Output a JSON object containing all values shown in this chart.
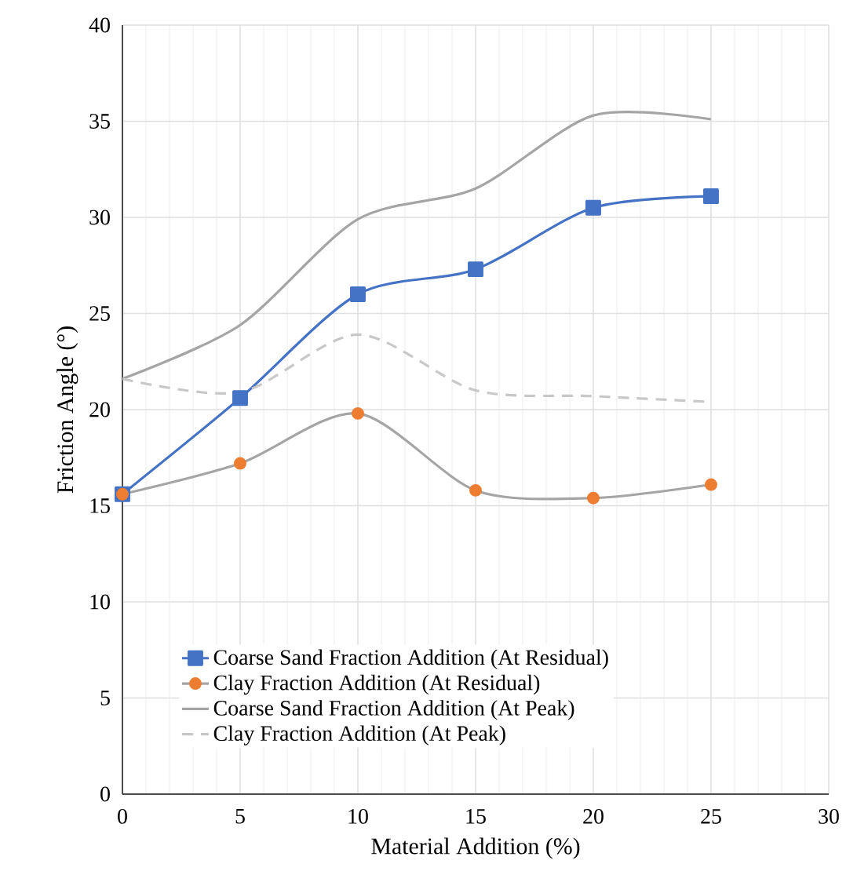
{
  "chart_data": {
    "type": "line",
    "xlabel": "Material Addition (%)",
    "ylabel": "Friction Angle (°)",
    "x": [
      0,
      5,
      10,
      15,
      20,
      25
    ],
    "xlim": [
      0,
      30
    ],
    "xticks": [
      0,
      5,
      10,
      15,
      20,
      25,
      30
    ],
    "ylim": [
      0,
      40
    ],
    "yticks": [
      0,
      5,
      10,
      15,
      20,
      25,
      30,
      35,
      40
    ],
    "grid": true,
    "legend": "bottom left",
    "series": [
      {
        "name": "Coarse Sand Fraction Addition (At Residual)",
        "color": "#4472c4",
        "marker": "square",
        "values": [
          15.6,
          20.6,
          26.0,
          27.3,
          30.5,
          31.1
        ]
      },
      {
        "name": "Clay Fraction Addition (At Residual)",
        "color": "#a5a5a5",
        "colors": [
          "#ed7d31",
          "#ed7d31",
          "#ed7d31",
          "#ed7d31",
          "#ed7d31",
          "#ed7d31"
        ],
        "marker": "circle",
        "values": [
          15.6,
          17.2,
          19.8,
          15.8,
          15.4,
          16.1
        ]
      },
      {
        "name": "Coarse Sand Fraction Addition (At Peak)",
        "color": "#a5a5a5",
        "marker": "none",
        "values": [
          21.6,
          24.4,
          29.9,
          31.5,
          35.3,
          35.1
        ]
      },
      {
        "name": "Clay Fraction Addition (At Peak)",
        "color": "#c8c8c8",
        "marker": "none",
        "line_style": "dashed",
        "values": [
          21.6,
          20.9,
          23.9,
          21.0,
          20.7,
          20.4
        ]
      }
    ]
  }
}
